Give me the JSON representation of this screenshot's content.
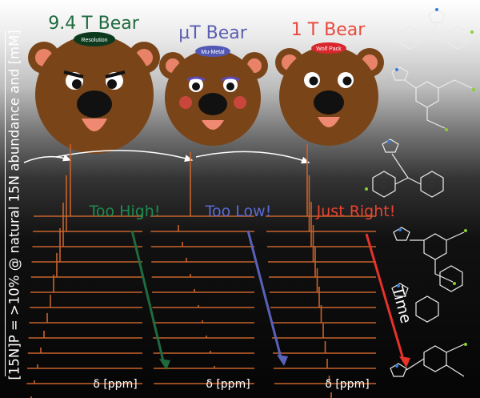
{
  "y_axis_label": "[15N]P = >10% @ natural 15N abundance and [mM]",
  "bears": [
    {
      "title": "9.4 T Bear",
      "hat": "Resolution",
      "title_color": "#1f6b3f",
      "hat_color": "#0d3a1e",
      "verdict": "Too High!",
      "verdict_color": "#1f8a4f",
      "arrow_color": "#1f6b3f"
    },
    {
      "title": "µT Bear",
      "hat": "Mu-Metal",
      "title_color": "#5b5fb0",
      "hat_color": "#5258b4",
      "verdict": "Too Low!",
      "verdict_color": "#5b6ad6",
      "arrow_color": "#5a62b8"
    },
    {
      "title": "1 T Bear",
      "hat": "Wolf Pack",
      "title_color": "#e84a3c",
      "hat_color": "#d8262c",
      "verdict": "Just Right!",
      "verdict_color": "#e8432f",
      "arrow_color": "#e8322a"
    }
  ],
  "axis_label": "δ [ppm]",
  "time_label": "Time",
  "colors": {
    "fur": "#7a4419",
    "ear_inner": "#e8836a",
    "nose": "#111111",
    "mouth": "#f08972",
    "spectrum_line": "#c8632c"
  }
}
